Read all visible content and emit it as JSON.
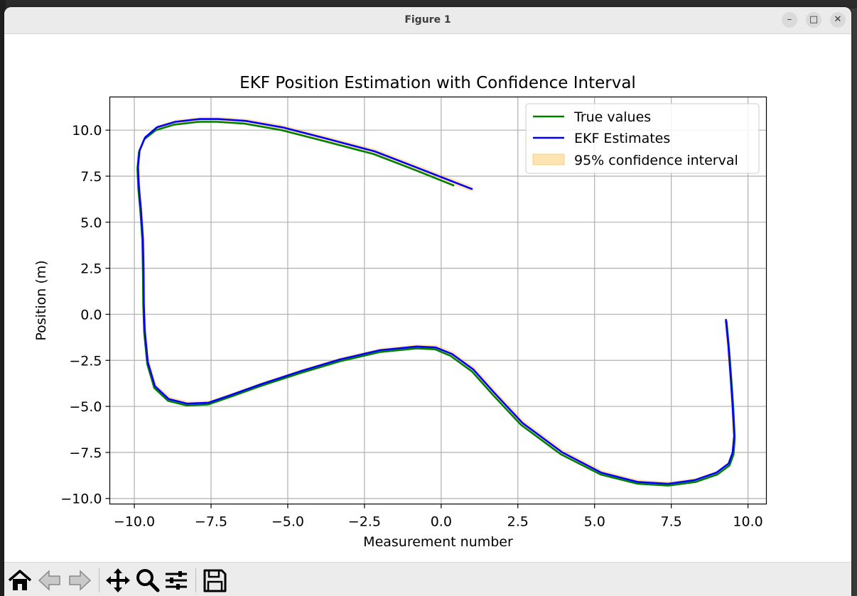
{
  "window": {
    "title": "Figure 1",
    "minimize_glyph": "–",
    "maximize_glyph": "□",
    "close_glyph": "✕"
  },
  "toolbar": {
    "items": [
      "home-icon",
      "back-arrow-icon",
      "forward-arrow-icon",
      "pan-icon",
      "zoom-icon",
      "configure-subplots-icon",
      "save-icon"
    ]
  },
  "chart_data": {
    "type": "line",
    "title": "EKF Position Estimation with Confidence Interval",
    "xlabel": "Measurement number",
    "ylabel": "Position (m)",
    "xlim": [
      -10.8,
      10.6
    ],
    "ylim": [
      -10.3,
      11.8
    ],
    "xticks": [
      -10.0,
      -7.5,
      -5.0,
      -2.5,
      0.0,
      2.5,
      5.0,
      7.5,
      10.0
    ],
    "xtick_labels": [
      "−10.0",
      "−7.5",
      "−5.0",
      "−2.5",
      "0.0",
      "2.5",
      "5.0",
      "7.5",
      "10.0"
    ],
    "yticks": [
      10.0,
      7.5,
      5.0,
      2.5,
      0.0,
      -2.5,
      -5.0,
      -7.5,
      -10.0
    ],
    "ytick_labels": [
      "10.0",
      "7.5",
      "5.0",
      "2.5",
      "0.0",
      "−2.5",
      "−5.0",
      "−7.5",
      "−10.0"
    ],
    "grid": true,
    "legend_position": "top-right",
    "series": [
      {
        "name": "True values",
        "color": "#008000",
        "x": [
          9.3,
          9.38,
          9.46,
          9.52,
          9.57,
          9.53,
          9.4,
          9.0,
          8.3,
          7.4,
          6.4,
          5.2,
          3.9,
          2.6,
          1.7,
          1.0,
          0.3,
          -0.2,
          -0.8,
          -2.0,
          -3.3,
          -4.6,
          -5.9,
          -6.9,
          -7.6,
          -8.3,
          -8.9,
          -9.35,
          -9.58,
          -9.68,
          -9.71,
          -9.72,
          -9.74,
          -9.8,
          -9.87,
          -9.9,
          -9.85,
          -9.68,
          -9.3,
          -8.7,
          -7.9,
          -7.3,
          -6.4,
          -5.2,
          -3.8,
          -2.2,
          -0.8,
          0.4
        ],
        "y": [
          -0.4,
          -1.8,
          -3.6,
          -5.1,
          -6.7,
          -7.6,
          -8.2,
          -8.7,
          -9.1,
          -9.3,
          -9.2,
          -8.7,
          -7.6,
          -6.0,
          -4.4,
          -3.1,
          -2.25,
          -1.9,
          -1.85,
          -2.05,
          -2.55,
          -3.2,
          -3.9,
          -4.5,
          -4.9,
          -4.95,
          -4.7,
          -4.0,
          -2.7,
          -1.0,
          0.5,
          2.3,
          4.0,
          5.5,
          6.8,
          7.9,
          8.8,
          9.5,
          10.0,
          10.3,
          10.45,
          10.45,
          10.35,
          10.0,
          9.4,
          8.7,
          7.8,
          7.0
        ]
      },
      {
        "name": "EKF Estimates",
        "color": "#0000ff",
        "x": [
          9.28,
          9.36,
          9.44,
          9.5,
          9.55,
          9.5,
          9.37,
          8.97,
          8.27,
          7.4,
          6.4,
          5.22,
          3.95,
          2.65,
          1.75,
          1.05,
          0.35,
          -0.18,
          -0.8,
          -2.0,
          -3.3,
          -4.6,
          -5.88,
          -6.88,
          -7.58,
          -8.28,
          -8.88,
          -9.33,
          -9.56,
          -9.66,
          -9.69,
          -9.7,
          -9.72,
          -9.78,
          -9.85,
          -9.88,
          -9.83,
          -9.65,
          -9.27,
          -8.67,
          -7.87,
          -7.27,
          -6.37,
          -5.17,
          -3.77,
          -2.17,
          -0.77,
          1.0
        ],
        "y": [
          -0.3,
          -1.7,
          -3.5,
          -5.0,
          -6.6,
          -7.5,
          -8.1,
          -8.6,
          -9.0,
          -9.2,
          -9.1,
          -8.6,
          -7.5,
          -5.9,
          -4.3,
          -3.0,
          -2.15,
          -1.8,
          -1.75,
          -1.95,
          -2.45,
          -3.1,
          -3.8,
          -4.4,
          -4.8,
          -4.85,
          -4.6,
          -3.9,
          -2.6,
          -0.9,
          0.6,
          2.4,
          4.1,
          5.6,
          6.9,
          8.0,
          8.9,
          9.6,
          10.15,
          10.45,
          10.6,
          10.6,
          10.5,
          10.15,
          9.55,
          8.85,
          7.95,
          6.8
        ]
      }
    ],
    "confidence_band": {
      "name": "95% confidence interval",
      "fill": "#ffa500",
      "opacity": 0.3,
      "half_width": 0.12
    }
  }
}
